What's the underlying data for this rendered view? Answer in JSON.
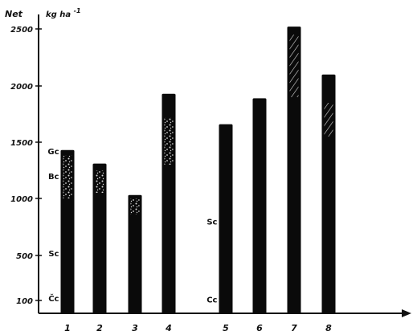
{
  "chart_data": {
    "type": "bar",
    "ylabel": "Net",
    "unit": "kg ha",
    "unit_exp": "-1",
    "yticks": [
      "100",
      "500",
      "1000",
      "1500",
      "2000",
      "2500"
    ],
    "ylim": [
      100,
      2500
    ],
    "categories": [
      "1",
      "2",
      "3",
      "4",
      "5",
      "6",
      "7",
      "8"
    ],
    "values": [
      1430,
      1310,
      1030,
      1930,
      1660,
      1890,
      2520,
      2100
    ],
    "bar_color": "#0a0a0a",
    "segment_labels": [
      {
        "text": "Gc",
        "value": 1420,
        "bar": "1"
      },
      {
        "text": "Bc",
        "value": 1200,
        "bar": "1"
      },
      {
        "text": "Sc",
        "value": 520,
        "bar": "1"
      },
      {
        "text": "Čc",
        "value": 120,
        "bar": "1"
      },
      {
        "text": "Sc",
        "value": 800,
        "bar": "5"
      },
      {
        "text": "Cc",
        "value": 110,
        "bar": "5"
      }
    ]
  }
}
